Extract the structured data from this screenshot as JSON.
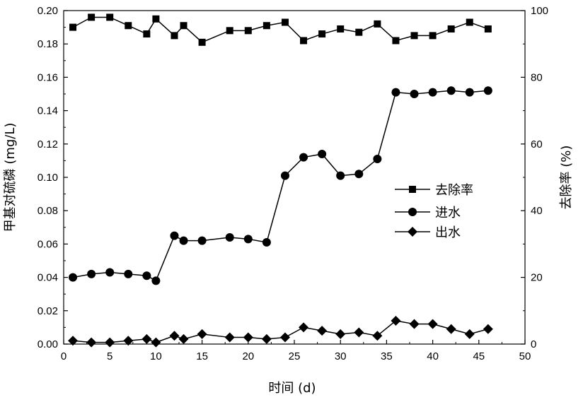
{
  "chart_data": {
    "type": "line",
    "title": "",
    "xlabel": "时间 (d)",
    "ylabel_left": "甲基对硫磷 (mg/L)",
    "ylabel_right": "去除率 (%)",
    "xlim": [
      0,
      50
    ],
    "ylim_left": [
      0,
      0.2
    ],
    "ylim_right": [
      0,
      100
    ],
    "x_ticks": [
      "0",
      "5",
      "10",
      "15",
      "20",
      "25",
      "30",
      "35",
      "40",
      "45",
      "50"
    ],
    "y_left_ticks": [
      "0.00",
      "0.02",
      "0.04",
      "0.06",
      "0.08",
      "0.10",
      "0.12",
      "0.14",
      "0.16",
      "0.18",
      "0.20"
    ],
    "y_right_ticks": [
      "0",
      "20",
      "40",
      "60",
      "80",
      "100"
    ],
    "grid": false,
    "legend_position": "center-right",
    "series": [
      {
        "name": "去除率",
        "axis": "right",
        "marker": "square",
        "x": [
          1,
          3,
          5,
          7,
          9,
          10,
          12,
          13,
          15,
          18,
          20,
          22,
          24,
          26,
          28,
          30,
          32,
          34,
          36,
          38,
          40,
          42,
          44,
          46
        ],
        "y": [
          95,
          98,
          98,
          95.5,
          93,
          97.5,
          92.5,
          95.5,
          90.5,
          94,
          94,
          95.5,
          96.5,
          91,
          93,
          94.5,
          93.5,
          96,
          91,
          92.5,
          92.5,
          94.5,
          96.5,
          94.5
        ]
      },
      {
        "name": "进水",
        "axis": "left",
        "marker": "circle",
        "x": [
          1,
          3,
          5,
          7,
          9,
          10,
          12,
          13,
          15,
          18,
          20,
          22,
          24,
          26,
          28,
          30,
          32,
          34,
          36,
          38,
          40,
          42,
          44,
          46
        ],
        "y": [
          0.04,
          0.042,
          0.043,
          0.042,
          0.041,
          0.038,
          0.065,
          0.062,
          0.062,
          0.064,
          0.063,
          0.061,
          0.101,
          0.112,
          0.114,
          0.101,
          0.102,
          0.111,
          0.151,
          0.15,
          0.151,
          0.152,
          0.151,
          0.152
        ]
      },
      {
        "name": "出水",
        "axis": "left",
        "marker": "diamond",
        "x": [
          1,
          3,
          5,
          7,
          9,
          10,
          12,
          13,
          15,
          18,
          20,
          22,
          24,
          26,
          28,
          30,
          32,
          34,
          36,
          38,
          40,
          42,
          44,
          46
        ],
        "y": [
          0.002,
          0.001,
          0.001,
          0.002,
          0.003,
          0.001,
          0.005,
          0.003,
          0.006,
          0.004,
          0.004,
          0.003,
          0.004,
          0.01,
          0.008,
          0.006,
          0.007,
          0.005,
          0.014,
          0.012,
          0.012,
          0.009,
          0.006,
          0.009
        ]
      }
    ]
  }
}
